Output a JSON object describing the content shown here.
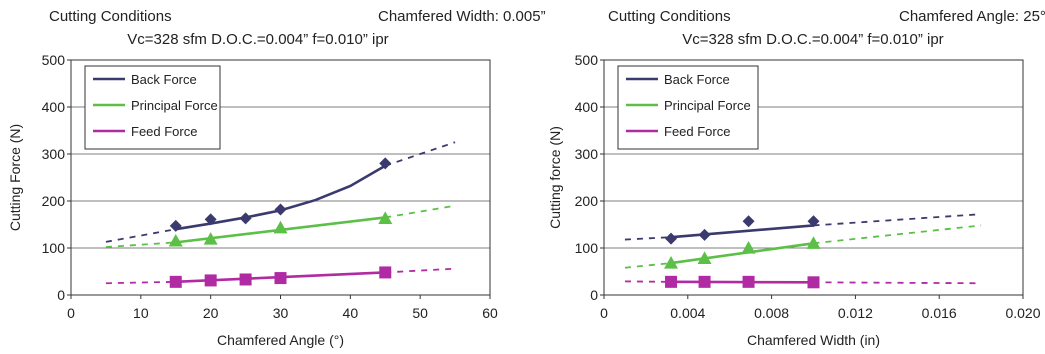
{
  "chart_data": [
    {
      "type": "line",
      "header_line1_left": "Cutting Conditions",
      "header_line1_right": "Chamfered Width: 0.005”",
      "header_line2": "Vc=328 sfm  D.O.C.=0.004”  f=0.010” ipr",
      "xlabel": "Chamfered Angle (°)",
      "ylabel": "Cutting Force (N)",
      "xlim": [
        0,
        60
      ],
      "ylim": [
        0,
        500
      ],
      "xticks": [
        "0",
        "10",
        "20",
        "30",
        "40",
        "50",
        "60"
      ],
      "yticks": [
        "0",
        "100",
        "200",
        "300",
        "400",
        "500"
      ],
      "grid": "horizontal",
      "legend": "top-left",
      "series": [
        {
          "name": "Back Force",
          "color": "#3a3a6e",
          "marker": "diamond",
          "x": [
            15,
            20,
            25,
            30,
            45
          ],
          "y": [
            147,
            161,
            163,
            182,
            280
          ],
          "fit_solid": {
            "x": [
              15,
              20,
              25,
              30,
              35,
              40,
              45
            ],
            "y": [
              140,
              152,
              165,
              180,
              202,
              232,
              275
            ]
          },
          "fit_dashed": {
            "x": [
              5,
              15
            ],
            "y": [
              113,
              140
            ]
          },
          "fit_dashed_ext": {
            "x": [
              45,
              55
            ],
            "y": [
              275,
              325
            ]
          }
        },
        {
          "name": "Principal Force",
          "color": "#5cbf47",
          "marker": "triangle",
          "x": [
            15,
            20,
            30,
            45
          ],
          "y": [
            115,
            119,
            143,
            163
          ],
          "fit_solid": {
            "x": [
              15,
              45
            ],
            "y": [
              112,
              165
            ]
          },
          "fit_dashed": {
            "x": [
              5,
              15
            ],
            "y": [
              102,
              112
            ]
          },
          "fit_dashed_ext": {
            "x": [
              45,
              55
            ],
            "y": [
              165,
              190
            ]
          }
        },
        {
          "name": "Feed Force",
          "color": "#b02aa3",
          "marker": "square",
          "x": [
            15,
            20,
            25,
            30,
            45
          ],
          "y": [
            28,
            31,
            33,
            36,
            48
          ],
          "fit_solid": {
            "x": [
              15,
              45
            ],
            "y": [
              28,
              48
            ]
          },
          "fit_dashed": {
            "x": [
              5,
              15
            ],
            "y": [
              25,
              28
            ]
          },
          "fit_dashed_ext": {
            "x": [
              45,
              55
            ],
            "y": [
              48,
              56
            ]
          }
        }
      ]
    },
    {
      "type": "line",
      "header_line1_left": "Cutting Conditions",
      "header_line1_right": "Chamfered Angle: 25°",
      "header_line2": "Vc=328 sfm  D.O.C.=0.004”  f=0.010” ipr",
      "xlabel": "Chamfered Width (in)",
      "ylabel": "Cutting force (N)",
      "xlim": [
        0,
        0.02
      ],
      "ylim": [
        0,
        500
      ],
      "xticks": [
        "0",
        "0.004",
        "0.008",
        "0.012",
        "0.016",
        "0.020"
      ],
      "yticks": [
        "0",
        "100",
        "200",
        "300",
        "400",
        "500"
      ],
      "grid": "horizontal",
      "legend": "top-left",
      "series": [
        {
          "name": "Back Force",
          "color": "#3a3a6e",
          "marker": "diamond",
          "x": [
            0.0032,
            0.0048,
            0.0069,
            0.01
          ],
          "y": [
            120,
            128,
            157,
            157
          ],
          "fit_solid": {
            "x": [
              0.0032,
              0.01
            ],
            "y": [
              123,
              148
            ]
          },
          "fit_dashed": {
            "x": [
              0.001,
              0.0032
            ],
            "y": [
              118,
              123
            ]
          },
          "fit_dashed_ext": {
            "x": [
              0.01,
              0.018
            ],
            "y": [
              148,
              172
            ]
          }
        },
        {
          "name": "Principal Force",
          "color": "#5cbf47",
          "marker": "triangle",
          "x": [
            0.0032,
            0.0048,
            0.0069,
            0.01
          ],
          "y": [
            68,
            78,
            100,
            110
          ],
          "fit_solid": {
            "x": [
              0.0032,
              0.01
            ],
            "y": [
              68,
              110
            ]
          },
          "fit_dashed": {
            "x": [
              0.001,
              0.0032
            ],
            "y": [
              58,
              68
            ]
          },
          "fit_dashed_ext": {
            "x": [
              0.01,
              0.018
            ],
            "y": [
              110,
              148
            ]
          }
        },
        {
          "name": "Feed Force",
          "color": "#b02aa3",
          "marker": "square",
          "x": [
            0.0032,
            0.0048,
            0.0069,
            0.01
          ],
          "y": [
            28,
            28,
            28,
            27
          ],
          "fit_solid": {
            "x": [
              0.0032,
              0.01
            ],
            "y": [
              28,
              27
            ]
          },
          "fit_dashed": {
            "x": [
              0.001,
              0.0032
            ],
            "y": [
              29,
              28
            ]
          },
          "fit_dashed_ext": {
            "x": [
              0.01,
              0.018
            ],
            "y": [
              27,
              25
            ]
          }
        }
      ]
    }
  ]
}
